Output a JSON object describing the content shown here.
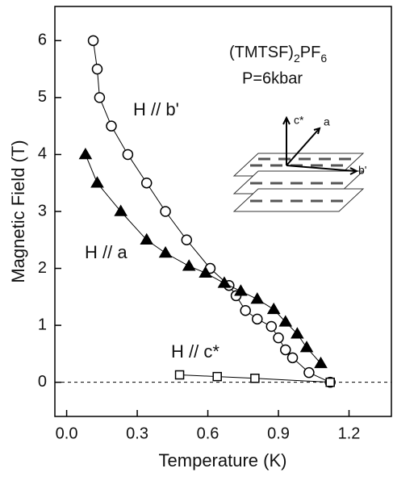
{
  "chart_data": {
    "type": "line",
    "xlabel": "Temperature (K)",
    "ylabel": "Magnetic Field (T)",
    "xlim": [
      -0.05,
      1.38
    ],
    "ylim": [
      -0.6,
      6.6
    ],
    "xticks": [
      {
        "value": 0,
        "label": "0.0"
      },
      0.3,
      0.6,
      0.9,
      {
        "value": 1.2,
        "label": "1.2"
      }
    ],
    "yticks": [
      0,
      1,
      2,
      3,
      4,
      5,
      6
    ],
    "hline": 0,
    "annotations": {
      "compound": [
        "(TMTSF)",
        "2",
        "PF",
        "6"
      ],
      "pressure": "P=6kbar"
    },
    "inset_labels": [
      "c*",
      "a",
      "b'"
    ],
    "series": [
      {
        "name": "H // b'",
        "color": "#000000",
        "marker": "circle",
        "x": [
          0.113,
          0.13,
          0.14,
          0.19,
          0.26,
          0.34,
          0.42,
          0.51,
          0.61,
          0.69,
          0.72,
          0.76,
          0.81,
          0.87,
          0.9,
          0.93,
          0.96,
          1.03,
          1.12
        ],
        "values": [
          6.0,
          5.5,
          5.0,
          4.5,
          4.0,
          3.5,
          3.0,
          2.5,
          2.0,
          1.7,
          1.52,
          1.26,
          1.11,
          0.98,
          0.78,
          0.57,
          0.43,
          0.17,
          0.0
        ]
      },
      {
        "name": "H // a",
        "color": "#000000",
        "marker": "triangle",
        "x": [
          0.08,
          0.13,
          0.23,
          0.34,
          0.42,
          0.52,
          0.59,
          0.67,
          0.74,
          0.81,
          0.88,
          0.93,
          0.98,
          1.02,
          1.08
        ],
        "values": [
          4.0,
          3.5,
          3.0,
          2.5,
          2.27,
          2.04,
          1.92,
          1.74,
          1.6,
          1.46,
          1.28,
          1.06,
          0.85,
          0.61,
          0.33
        ]
      },
      {
        "name": "H // c*",
        "color": "#000000",
        "marker": "square",
        "x": [
          0.48,
          0.64,
          0.8,
          1.12
        ],
        "values": [
          0.13,
          0.1,
          0.07,
          0.0
        ]
      }
    ]
  }
}
